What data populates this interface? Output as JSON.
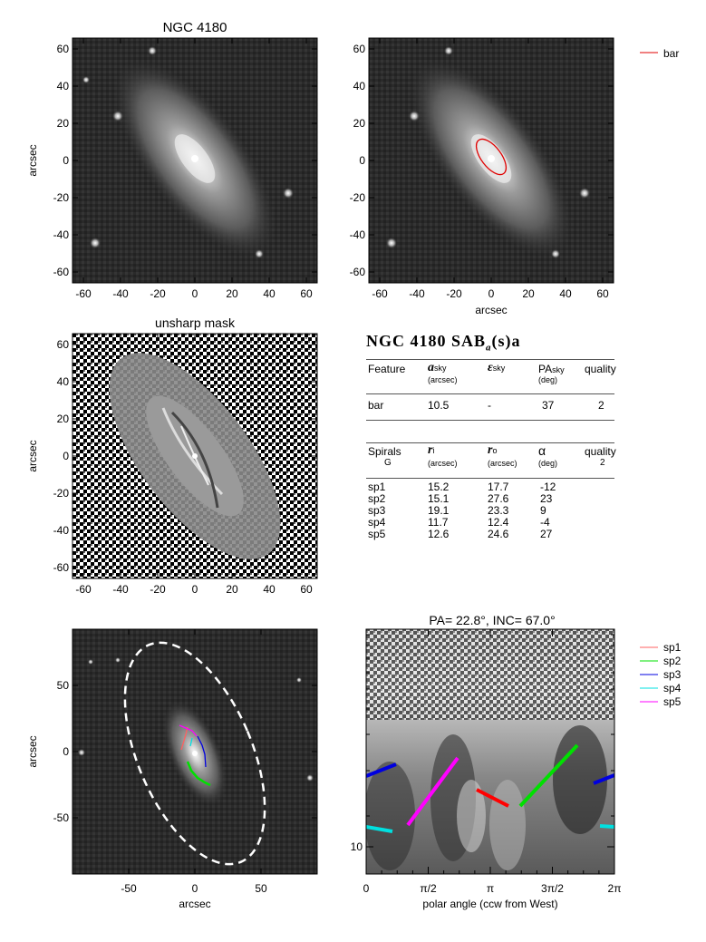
{
  "panels": {
    "top_left_title": "NGC 4180",
    "mid_left_title": "unsharp mask",
    "bottom_right_title": "PA= 22.8°, INC= 67.0°",
    "ylabel": "arcsec",
    "xlabel": "arcsec",
    "polar_xlabel": "polar angle (ccw from West)"
  },
  "axes": {
    "square_ticks": [
      "-60",
      "-40",
      "-20",
      "0",
      "20",
      "40",
      "60"
    ],
    "bottom_left_ticks": [
      "-50",
      "0",
      "50"
    ],
    "polar_x_ticks": [
      "0",
      "π/2",
      "π",
      "3π/2",
      "2π"
    ],
    "polar_y_tick": "10"
  },
  "legend_top": [
    {
      "label": "bar",
      "color": "#e00000"
    }
  ],
  "legend_bottom": [
    {
      "label": "sp1",
      "color": "#ff6060"
    },
    {
      "label": "sp2",
      "color": "#00e000"
    },
    {
      "label": "sp3",
      "color": "#0000e0"
    },
    {
      "label": "sp4",
      "color": "#00e0e0"
    },
    {
      "label": "sp5",
      "color": "#ff00ff"
    }
  ],
  "table": {
    "title_main": "NGC 4180  SAB",
    "title_sub": "a",
    "title_end": "(s)a",
    "bar_header": {
      "c1": "Feature",
      "c2": "a",
      "c2sub": "sky",
      "c2unit": "(arcsec)",
      "c3": "ε",
      "c3sub": "sky",
      "c4": "PA",
      "c4sub": "sky",
      "c4unit": "(deg)",
      "c5": "quality"
    },
    "bar_row": {
      "c1": "bar",
      "c2": "10.5",
      "c3": "-",
      "c4": "37",
      "c5": "2"
    },
    "spiral_header": {
      "c1": "Spirals",
      "c1b": "G",
      "c2": "r",
      "c2sub": "i",
      "c2unit": "(arcsec)",
      "c3": "r",
      "c3sub": "o",
      "c3unit": "(arcsec)",
      "c4": "α",
      "c4unit": "(deg)",
      "c5": "quality",
      "c5b": "2"
    },
    "spiral_rows": [
      {
        "c1": "sp1",
        "c2": "15.2",
        "c3": "17.7",
        "c4": "-12"
      },
      {
        "c1": "sp2",
        "c2": "15.1",
        "c3": "27.6",
        "c4": "23"
      },
      {
        "c1": "sp3",
        "c2": "19.1",
        "c3": "23.3",
        "c4": "9"
      },
      {
        "c1": "sp4",
        "c2": "11.7",
        "c3": "12.4",
        "c4": "-4"
      },
      {
        "c1": "sp5",
        "c2": "12.6",
        "c3": "24.6",
        "c4": "27"
      }
    ]
  }
}
